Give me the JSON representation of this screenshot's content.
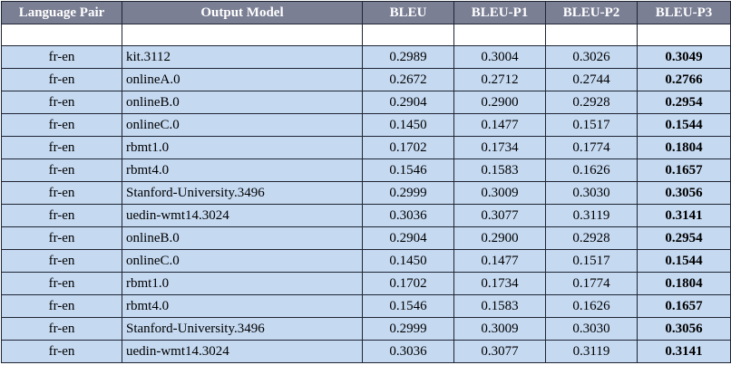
{
  "table": {
    "headers": [
      "Language Pair",
      "Output Model",
      "BLEU",
      "BLEU-P1",
      "BLEU-P2",
      "BLEU-P3"
    ],
    "rows": [
      {
        "pair": "fr-en",
        "model": "kit.3112",
        "bleu": "0.2989",
        "p1": "0.3004",
        "p2": "0.3026",
        "p3": "0.3049"
      },
      {
        "pair": "fr-en",
        "model": "onlineA.0",
        "bleu": "0.2672",
        "p1": "0.2712",
        "p2": "0.2744",
        "p3": "0.2766"
      },
      {
        "pair": "fr-en",
        "model": "onlineB.0",
        "bleu": "0.2904",
        "p1": "0.2900",
        "p2": "0.2928",
        "p3": "0.2954"
      },
      {
        "pair": "fr-en",
        "model": "onlineC.0",
        "bleu": "0.1450",
        "p1": "0.1477",
        "p2": "0.1517",
        "p3": "0.1544"
      },
      {
        "pair": "fr-en",
        "model": "rbmt1.0",
        "bleu": "0.1702",
        "p1": "0.1734",
        "p2": "0.1774",
        "p3": "0.1804"
      },
      {
        "pair": "fr-en",
        "model": "rbmt4.0",
        "bleu": "0.1546",
        "p1": "0.1583",
        "p2": "0.1626",
        "p3": "0.1657"
      },
      {
        "pair": "fr-en",
        "model": "Stanford-University.3496",
        "bleu": "0.2999",
        "p1": "0.3009",
        "p2": "0.3030",
        "p3": "0.3056"
      },
      {
        "pair": "fr-en",
        "model": "uedin-wmt14.3024",
        "bleu": "0.3036",
        "p1": "0.3077",
        "p2": "0.3119",
        "p3": "0.3141"
      },
      {
        "pair": "fr-en",
        "model": "onlineB.0",
        "bleu": "0.2904",
        "p1": "0.2900",
        "p2": "0.2928",
        "p3": "0.2954"
      },
      {
        "pair": "fr-en",
        "model": "onlineC.0",
        "bleu": "0.1450",
        "p1": "0.1477",
        "p2": "0.1517",
        "p3": "0.1544"
      },
      {
        "pair": "fr-en",
        "model": "rbmt1.0",
        "bleu": "0.1702",
        "p1": "0.1734",
        "p2": "0.1774",
        "p3": "0.1804"
      },
      {
        "pair": "fr-en",
        "model": "rbmt4.0",
        "bleu": "0.1546",
        "p1": "0.1583",
        "p2": "0.1626",
        "p3": "0.1657"
      },
      {
        "pair": "fr-en",
        "model": "Stanford-University.3496",
        "bleu": "0.2999",
        "p1": "0.3009",
        "p2": "0.3030",
        "p3": "0.3056"
      },
      {
        "pair": "fr-en",
        "model": "uedin-wmt14.3024",
        "bleu": "0.3036",
        "p1": "0.3077",
        "p2": "0.3119",
        "p3": "0.3141"
      }
    ]
  },
  "colors": {
    "header_bg": "#7b7f94",
    "header_text": "#ffffff",
    "row_bg": "#c5d9f1",
    "border": "#1f2533"
  }
}
